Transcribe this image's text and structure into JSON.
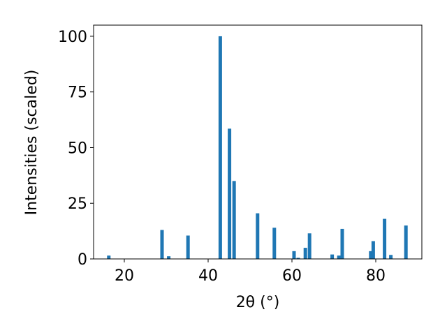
{
  "chart_data": {
    "type": "bar",
    "x": [
      16.3,
      29.0,
      30.6,
      35.2,
      42.9,
      45.1,
      46.2,
      51.8,
      55.8,
      60.5,
      61.5,
      63.2,
      64.2,
      69.6,
      71.2,
      72.0,
      78.8,
      79.4,
      82.1,
      83.6,
      87.2
    ],
    "values": [
      1.5,
      13,
      1.2,
      10.5,
      100,
      58.5,
      35,
      20.5,
      14,
      3.5,
      0.5,
      5,
      11.5,
      2,
      1.5,
      13.5,
      3.5,
      8,
      18,
      1.8,
      15
    ],
    "color": "#1f77b4",
    "xlabel": "2θ (°)",
    "ylabel": "Intensities (scaled)",
    "xlim": [
      12.67,
      91
    ],
    "xticks": [
      20,
      40,
      60,
      80
    ],
    "ylim": [
      0,
      105
    ],
    "yticks": [
      0,
      25,
      50,
      75,
      100
    ],
    "grid": false
  }
}
